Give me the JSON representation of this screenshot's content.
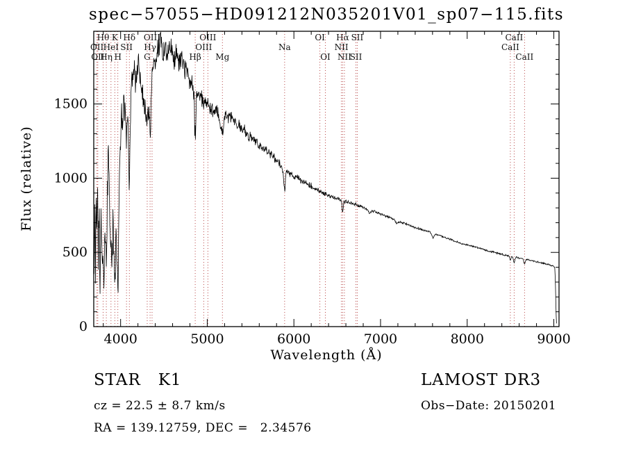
{
  "chart_data": {
    "type": "line",
    "title": "spec−57055−HD091212N035201V01_sp07−115.fits",
    "xlabel": "Wavelength (Å)",
    "ylabel": "Flux (relative)",
    "xlim": [
      3690,
      9060
    ],
    "ylim": [
      0,
      1990
    ],
    "x_ticks": [
      4000,
      5000,
      6000,
      7000,
      8000,
      9000
    ],
    "y_ticks": [
      0,
      500,
      1000,
      1500
    ],
    "x_minor_step": 200,
    "y_minor_step": 100,
    "grid": false,
    "legend": "none",
    "series": [
      {
        "name": "spectrum",
        "color": "#000000",
        "continuum_points": [
          [
            3695,
            300
          ],
          [
            3703,
            780
          ],
          [
            3710,
            340
          ],
          [
            3718,
            980
          ],
          [
            3726,
            520
          ],
          [
            3734,
            1020
          ],
          [
            3742,
            320
          ],
          [
            3752,
            880
          ],
          [
            3762,
            260
          ],
          [
            3774,
            760
          ],
          [
            3786,
            420
          ],
          [
            3798,
            620
          ],
          [
            3810,
            360
          ],
          [
            3822,
            700
          ],
          [
            3835,
            330
          ],
          [
            3848,
            920
          ],
          [
            3860,
            1200
          ],
          [
            3872,
            820
          ],
          [
            3886,
            520
          ],
          [
            3898,
            400
          ],
          [
            3912,
            760
          ],
          [
            3924,
            560
          ],
          [
            3933,
            430
          ],
          [
            3946,
            680
          ],
          [
            3958,
            520
          ],
          [
            3968,
            420
          ],
          [
            3982,
            950
          ],
          [
            3996,
            1180
          ],
          [
            4010,
            1420
          ],
          [
            4024,
            1280
          ],
          [
            4038,
            1560
          ],
          [
            4052,
            1380
          ],
          [
            4066,
            1240
          ],
          [
            4080,
            1400
          ],
          [
            4094,
            1480
          ],
          [
            4110,
            1520
          ],
          [
            4126,
            1660
          ],
          [
            4142,
            1600
          ],
          [
            4158,
            1740
          ],
          [
            4174,
            1640
          ],
          [
            4190,
            1700
          ],
          [
            4206,
            1790
          ],
          [
            4222,
            1700
          ],
          [
            4238,
            1620
          ],
          [
            4254,
            1560
          ],
          [
            4270,
            1520
          ],
          [
            4290,
            1500
          ],
          [
            4310,
            1530
          ],
          [
            4330,
            1570
          ],
          [
            4350,
            1630
          ],
          [
            4370,
            1710
          ],
          [
            4390,
            1790
          ],
          [
            4415,
            1830
          ],
          [
            4440,
            1880
          ],
          [
            4465,
            1910
          ],
          [
            4490,
            1840
          ],
          [
            4515,
            1890
          ],
          [
            4540,
            1830
          ],
          [
            4565,
            1900
          ],
          [
            4590,
            1840
          ],
          [
            4615,
            1800
          ],
          [
            4640,
            1840
          ],
          [
            4665,
            1790
          ],
          [
            4690,
            1810
          ],
          [
            4715,
            1800
          ],
          [
            4740,
            1730
          ],
          [
            4765,
            1740
          ],
          [
            4790,
            1680
          ],
          [
            4815,
            1650
          ],
          [
            4840,
            1610
          ],
          [
            4865,
            1590
          ],
          [
            4890,
            1570
          ],
          [
            4915,
            1550
          ],
          [
            4940,
            1540
          ],
          [
            4965,
            1525
          ],
          [
            4990,
            1510
          ],
          [
            5015,
            1495
          ],
          [
            5045,
            1475
          ],
          [
            5075,
            1460
          ],
          [
            5105,
            1445
          ],
          [
            5135,
            1430
          ],
          [
            5175,
            1405
          ],
          [
            5215,
            1430
          ],
          [
            5255,
            1405
          ],
          [
            5295,
            1412
          ],
          [
            5340,
            1375
          ],
          [
            5385,
            1345
          ],
          [
            5430,
            1318
          ],
          [
            5475,
            1292
          ],
          [
            5520,
            1268
          ],
          [
            5565,
            1242
          ],
          [
            5610,
            1218
          ],
          [
            5655,
            1196
          ],
          [
            5700,
            1176
          ],
          [
            5745,
            1152
          ],
          [
            5790,
            1124
          ],
          [
            5835,
            1094
          ],
          [
            5880,
            1064
          ],
          [
            5925,
            1044
          ],
          [
            5970,
            1026
          ],
          [
            6015,
            1010
          ],
          [
            6065,
            993
          ],
          [
            6115,
            976
          ],
          [
            6165,
            959
          ],
          [
            6215,
            941
          ],
          [
            6265,
            924
          ],
          [
            6315,
            910
          ],
          [
            6365,
            896
          ],
          [
            6415,
            882
          ],
          [
            6465,
            869
          ],
          [
            6515,
            858
          ],
          [
            6565,
            848
          ],
          [
            6615,
            840
          ],
          [
            6665,
            832
          ],
          [
            6715,
            822
          ],
          [
            6765,
            812
          ],
          [
            6815,
            800
          ],
          [
            6865,
            788
          ],
          [
            6915,
            778
          ],
          [
            6965,
            768
          ],
          [
            7020,
            757
          ],
          [
            7090,
            740
          ],
          [
            7160,
            722
          ],
          [
            7230,
            706
          ],
          [
            7300,
            690
          ],
          [
            7370,
            674
          ],
          [
            7440,
            660
          ],
          [
            7510,
            648
          ],
          [
            7580,
            636
          ],
          [
            7650,
            621
          ],
          [
            7720,
            606
          ],
          [
            7790,
            591
          ],
          [
            7860,
            575
          ],
          [
            7930,
            561
          ],
          [
            8000,
            551
          ],
          [
            8070,
            540
          ],
          [
            8140,
            528
          ],
          [
            8210,
            516
          ],
          [
            8280,
            505
          ],
          [
            8350,
            495
          ],
          [
            8420,
            484
          ],
          [
            8490,
            476
          ],
          [
            8560,
            468
          ],
          [
            8630,
            459
          ],
          [
            8700,
            450
          ],
          [
            8770,
            441
          ],
          [
            8840,
            432
          ],
          [
            8900,
            424
          ],
          [
            8950,
            416
          ],
          [
            8990,
            409
          ],
          [
            9010,
            402
          ],
          [
            9018,
            300
          ],
          [
            9026,
            90
          ],
          [
            9032,
            5
          ]
        ],
        "absorption_lines": [
          {
            "wavelength": 3933,
            "depth": 240,
            "sigma": 7
          },
          {
            "wavelength": 3968,
            "depth": 220,
            "sigma": 7
          },
          {
            "wavelength": 4101,
            "depth": 520,
            "sigma": 8
          },
          {
            "wavelength": 4307,
            "depth": 160,
            "sigma": 11
          },
          {
            "wavelength": 4340,
            "depth": 300,
            "sigma": 8
          },
          {
            "wavelength": 4861,
            "depth": 310,
            "sigma": 8
          },
          {
            "wavelength": 5175,
            "depth": 120,
            "sigma": 16
          },
          {
            "wavelength": 5893,
            "depth": 140,
            "sigma": 9
          },
          {
            "wavelength": 6563,
            "depth": 75,
            "sigma": 7
          },
          {
            "wavelength": 6870,
            "depth": 25,
            "sigma": 12
          },
          {
            "wavelength": 7190,
            "depth": 20,
            "sigma": 14
          },
          {
            "wavelength": 7605,
            "depth": 30,
            "sigma": 14
          },
          {
            "wavelength": 8498,
            "depth": 28,
            "sigma": 7
          },
          {
            "wavelength": 8542,
            "depth": 38,
            "sigma": 8
          },
          {
            "wavelength": 8662,
            "depth": 32,
            "sigma": 8
          }
        ],
        "noise_profile": [
          [
            3695,
            190
          ],
          [
            3900,
            170
          ],
          [
            4100,
            140
          ],
          [
            4400,
            110
          ],
          [
            4700,
            95
          ],
          [
            5000,
            70
          ],
          [
            5400,
            52
          ],
          [
            5800,
            36
          ],
          [
            6200,
            24
          ],
          [
            6600,
            15
          ],
          [
            7000,
            11
          ],
          [
            7500,
            8
          ],
          [
            8200,
            7
          ],
          [
            9035,
            6
          ]
        ]
      }
    ],
    "spectral_line_markers": {
      "color": "#b03333",
      "label_color": "#111111",
      "labels": [
        {
          "label": "Hθ",
          "wavelength": 3798,
          "row": 1
        },
        {
          "label": "K",
          "wavelength": 3933,
          "row": 1
        },
        {
          "label": "Hδ",
          "wavelength": 4101,
          "row": 1
        },
        {
          "label": "OIII",
          "wavelength": 4363,
          "row": 1
        },
        {
          "label": "OIII",
          "wavelength": 5007,
          "row": 1
        },
        {
          "label": "OI",
          "wavelength": 6300,
          "row": 1
        },
        {
          "label": "Hα",
          "wavelength": 6563,
          "row": 1
        },
        {
          "label": "SII",
          "wavelength": 6731,
          "row": 1
        },
        {
          "label": "CaII",
          "wavelength": 8542,
          "row": 1
        },
        {
          "label": "OII",
          "wavelength": 3727,
          "row": 2
        },
        {
          "label": "HeI",
          "wavelength": 3889,
          "row": 2
        },
        {
          "label": "SII",
          "wavelength": 4068,
          "row": 2
        },
        {
          "label": "Hγ",
          "wavelength": 4340,
          "row": 2
        },
        {
          "label": "OIII",
          "wavelength": 4959,
          "row": 2
        },
        {
          "label": "Na",
          "wavelength": 5893,
          "row": 2
        },
        {
          "label": "NII",
          "wavelength": 6548,
          "row": 2
        },
        {
          "label": "CaII",
          "wavelength": 8498,
          "row": 2
        },
        {
          "label": "OII",
          "wavelength": 3737,
          "row": 3
        },
        {
          "label": "Hη",
          "wavelength": 3835,
          "row": 3
        },
        {
          "label": "H",
          "wavelength": 3968,
          "row": 3
        },
        {
          "label": "G",
          "wavelength": 4307,
          "row": 3
        },
        {
          "label": "Hβ",
          "wavelength": 4861,
          "row": 3
        },
        {
          "label": "Mg",
          "wavelength": 5175,
          "row": 3
        },
        {
          "label": "OI",
          "wavelength": 6363,
          "row": 3
        },
        {
          "label": "NII",
          "wavelength": 6583,
          "row": 3
        },
        {
          "label": "SII",
          "wavelength": 6716,
          "row": 3
        },
        {
          "label": "CaII",
          "wavelength": 8662,
          "row": 3
        }
      ]
    }
  },
  "footer": {
    "class_label": "STAR   K1",
    "survey_label": "LAMOST DR3",
    "cz_line": "cz = 22.5 ± 8.7 km/s",
    "obs_date_line": "Obs−Date: 20150201",
    "ra_dec_line": "RA = 139.12759, DEC =   2.34576"
  }
}
